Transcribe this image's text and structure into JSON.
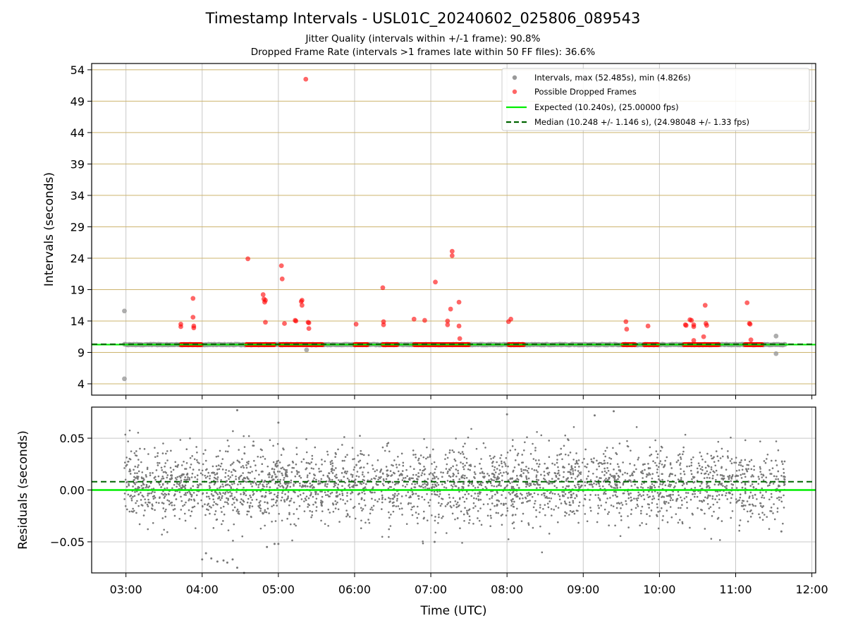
{
  "chart_data": [
    {
      "type": "scatter",
      "title": "Timestamp Intervals - USL01C_20240602_025806_089543",
      "subtitle_1": "Jitter Quality (intervals within +/-1 frame): 90.8%",
      "subtitle_2": "Dropped Frame Rate (intervals >1 frames late within 50 FF files): 36.6%",
      "ylabel": "Intervals (seconds)",
      "xlabel": "Time (UTC)",
      "x_units": "hours UTC",
      "xlim": [
        2.55,
        12.05
      ],
      "ylim": [
        2.2,
        55.0
      ],
      "yticks": [
        4,
        9,
        14,
        19,
        24,
        29,
        34,
        39,
        44,
        49,
        54
      ],
      "ytick_labels": [
        "4",
        "9",
        "14",
        "19",
        "24",
        "29",
        "34",
        "39",
        "44",
        "49",
        "54"
      ],
      "xticks": [
        3,
        4,
        5,
        6,
        7,
        8,
        9,
        10,
        11,
        12
      ],
      "xtick_labels": [
        "03:00",
        "04:00",
        "05:00",
        "06:00",
        "07:00",
        "08:00",
        "09:00",
        "10:00",
        "11:00",
        "12:00"
      ],
      "grid": true,
      "legend_position": "top-right",
      "series": [
        {
          "name": "Intervals, max (52.485s), min (4.826s)",
          "color": "#999999",
          "kind": "scatter",
          "baseline": {
            "y": 10.24,
            "x_start": 2.98,
            "x_end": 11.65
          },
          "outliers": [
            [
              2.98,
              15.6
            ],
            [
              2.98,
              4.8
            ],
            [
              5.37,
              9.4
            ],
            [
              11.53,
              11.6
            ],
            [
              11.53,
              8.8
            ]
          ]
        },
        {
          "name": "Possible Dropped Frames",
          "color": "#ff0000",
          "kind": "scatter",
          "baseline_segments": [
            [
              3.72,
              3.99
            ],
            [
              4.58,
              4.95
            ],
            [
              5.02,
              5.58
            ],
            [
              6.0,
              6.17
            ],
            [
              6.37,
              6.56
            ],
            [
              6.78,
              7.5
            ],
            [
              8.02,
              8.22
            ],
            [
              9.52,
              9.68
            ],
            [
              9.8,
              9.98
            ],
            [
              10.32,
              10.78
            ],
            [
              11.12,
              11.35
            ]
          ],
          "baseline_y": 10.24,
          "points": [
            [
              3.72,
              13.5
            ],
            [
              3.72,
              13.1
            ],
            [
              3.88,
              17.6
            ],
            [
              3.88,
              14.6
            ],
            [
              3.89,
              13.2
            ],
            [
              3.89,
              12.9
            ],
            [
              4.6,
              23.9
            ],
            [
              4.8,
              18.2
            ],
            [
              4.81,
              17.5
            ],
            [
              4.82,
              17.0
            ],
            [
              4.83,
              17.3
            ],
            [
              4.83,
              13.8
            ],
            [
              5.04,
              22.8
            ],
            [
              5.05,
              20.7
            ],
            [
              5.08,
              13.6
            ],
            [
              5.22,
              14.1
            ],
            [
              5.23,
              14.0
            ],
            [
              5.3,
              17.1
            ],
            [
              5.31,
              17.3
            ],
            [
              5.31,
              16.5
            ],
            [
              5.36,
              52.5
            ],
            [
              5.39,
              13.8
            ],
            [
              5.4,
              13.7
            ],
            [
              5.4,
              12.8
            ],
            [
              6.02,
              13.5
            ],
            [
              6.37,
              19.3
            ],
            [
              6.38,
              13.9
            ],
            [
              6.38,
              13.4
            ],
            [
              6.78,
              14.3
            ],
            [
              6.92,
              14.1
            ],
            [
              7.06,
              20.2
            ],
            [
              7.22,
              14.0
            ],
            [
              7.22,
              13.4
            ],
            [
              7.26,
              15.9
            ],
            [
              7.28,
              25.1
            ],
            [
              7.28,
              24.4
            ],
            [
              7.37,
              17.0
            ],
            [
              7.37,
              13.2
            ],
            [
              7.38,
              11.2
            ],
            [
              8.02,
              13.9
            ],
            [
              8.05,
              14.3
            ],
            [
              9.56,
              13.9
            ],
            [
              9.57,
              12.7
            ],
            [
              9.85,
              13.2
            ],
            [
              10.34,
              13.4
            ],
            [
              10.35,
              13.3
            ],
            [
              10.4,
              14.2
            ],
            [
              10.42,
              14.1
            ],
            [
              10.45,
              13.4
            ],
            [
              10.45,
              13.1
            ],
            [
              10.45,
              10.9
            ],
            [
              10.58,
              11.5
            ],
            [
              10.6,
              16.5
            ],
            [
              10.61,
              13.6
            ],
            [
              10.62,
              13.3
            ],
            [
              11.15,
              16.9
            ],
            [
              11.18,
              13.6
            ],
            [
              11.19,
              13.5
            ],
            [
              11.2,
              11.0
            ]
          ]
        },
        {
          "name": "Expected (10.240s), (25.00000 fps)",
          "color": "#00ee00",
          "kind": "hline",
          "y": 10.24
        },
        {
          "name": "Median (10.248 +/- 1.146 s), (24.98048 +/- 1.33 fps)",
          "color": "#006400",
          "kind": "hline-dashed",
          "y": 10.248
        }
      ]
    },
    {
      "type": "scatter",
      "ylabel": "Residuals (seconds)",
      "xlim": [
        2.55,
        12.05
      ],
      "ylim": [
        -0.08,
        0.08
      ],
      "yticks": [
        -0.05,
        0.0,
        0.05
      ],
      "ytick_labels": [
        "−0.05",
        "0.00",
        "0.05"
      ],
      "grid": true,
      "residual_x_range": [
        2.98,
        11.65
      ],
      "residual_point_count": 3000,
      "residual_spread": 0.02,
      "residual_color": "#777777",
      "expected_y": 0.0,
      "median_y": 0.008,
      "expected_color": "#00ee00",
      "median_color": "#006400",
      "notable_points": [
        [
          4.0,
          -0.067
        ],
        [
          4.05,
          -0.061
        ],
        [
          4.12,
          -0.066
        ],
        [
          4.2,
          -0.069
        ],
        [
          4.28,
          -0.068
        ],
        [
          4.33,
          -0.07
        ],
        [
          4.4,
          -0.067
        ],
        [
          4.46,
          -0.075
        ],
        [
          4.55,
          -0.082
        ],
        [
          4.85,
          -0.055
        ],
        [
          4.95,
          -0.052
        ],
        [
          5.0,
          -0.052
        ],
        [
          4.46,
          0.077
        ],
        [
          5.0,
          0.065
        ],
        [
          7.05,
          -0.05
        ],
        [
          8.0,
          0.073
        ],
        [
          9.15,
          0.072
        ],
        [
          9.4,
          0.076
        ],
        [
          11.6,
          -0.04
        ]
      ]
    }
  ]
}
